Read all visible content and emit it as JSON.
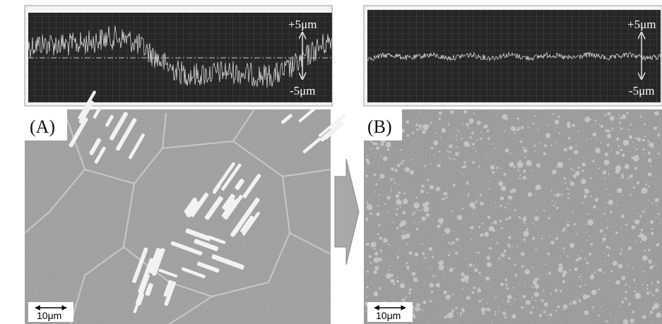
{
  "panels": [
    {
      "label": "(A)",
      "trace": {
        "upper": "+5μm",
        "lower": "-5μm"
      },
      "scale_bar": "10μm"
    },
    {
      "label": "(B)",
      "trace": {
        "upper": "+5μm",
        "lower": "-5μm"
      },
      "scale_bar": "10μm"
    }
  ]
}
